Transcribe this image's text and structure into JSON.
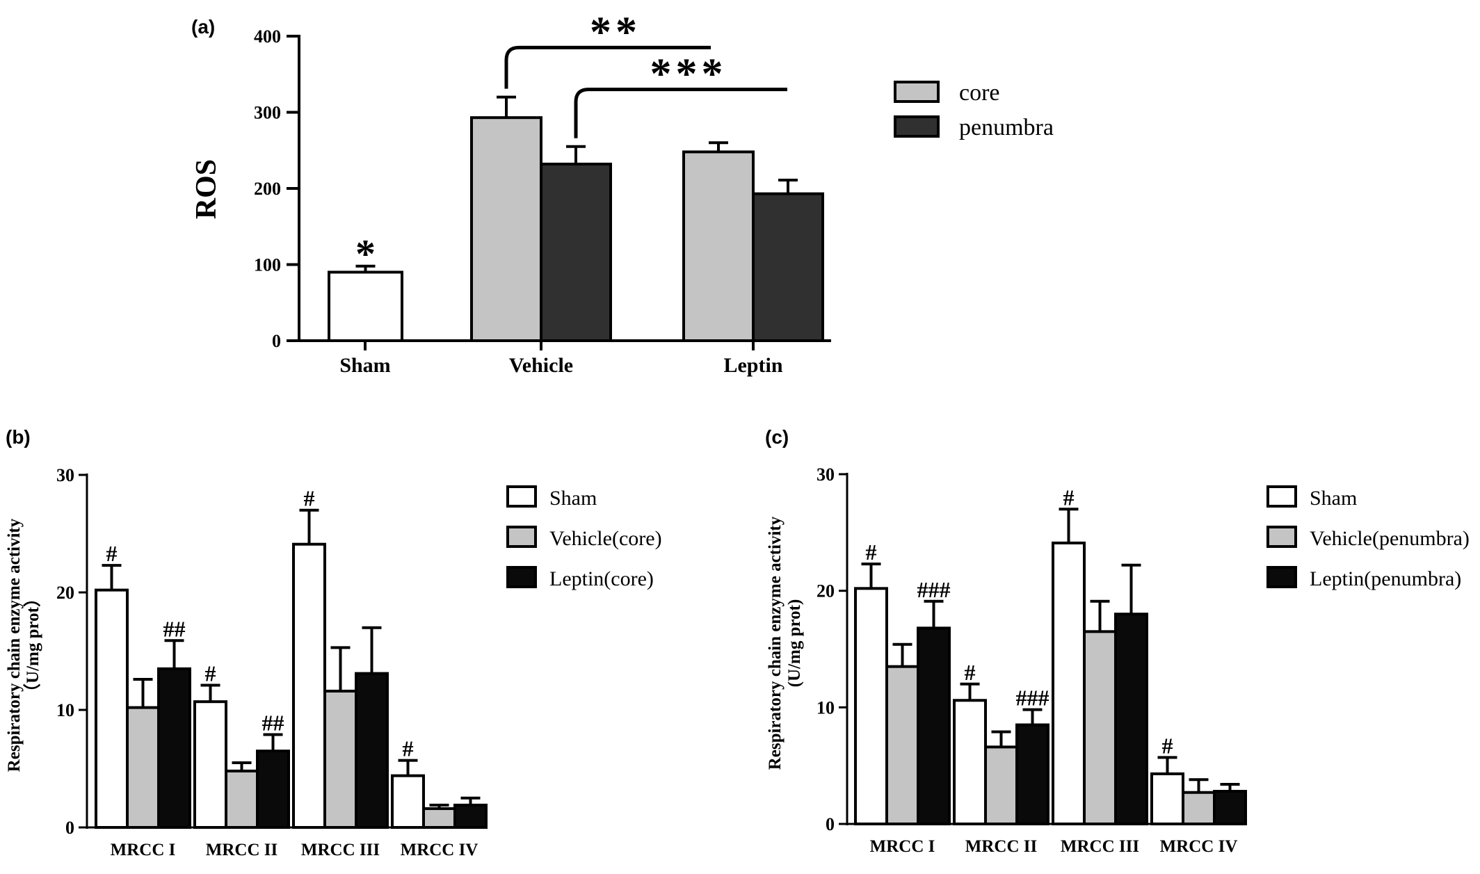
{
  "chart_data": [
    {
      "type": "bar",
      "panel_label": "(a)",
      "categories": [
        "Sham",
        "Vehicle",
        "Leptin"
      ],
      "ylabel": "ROS",
      "xlabel": "",
      "ylim": [
        0,
        400
      ],
      "yticks": [
        0,
        100,
        200,
        300,
        400
      ],
      "legend_position": "right",
      "legend": [
        "core",
        "penumbra"
      ],
      "colors": {
        "white": "#ffffff",
        "core": "#c4c4c4",
        "penumbra": "#303030"
      },
      "bars": [
        {
          "category": "Sham",
          "series": "",
          "value": 90,
          "error": 8,
          "color": "white",
          "annotation": "*"
        },
        {
          "category": "Vehicle",
          "series": "core",
          "value": 293,
          "error": 27,
          "color": "core",
          "annotation": ""
        },
        {
          "category": "Vehicle",
          "series": "penumbra",
          "value": 232,
          "error": 23,
          "color": "penumbra",
          "annotation": ""
        },
        {
          "category": "Leptin",
          "series": "core",
          "value": 248,
          "error": 12,
          "color": "core",
          "annotation": ""
        },
        {
          "category": "Leptin",
          "series": "penumbra",
          "value": 193,
          "error": 18,
          "color": "penumbra",
          "annotation": ""
        }
      ],
      "brackets": [
        {
          "label": "**",
          "from": {
            "category": "Vehicle",
            "series": "core"
          },
          "y": 385
        },
        {
          "label": "***",
          "from": {
            "category": "Vehicle",
            "series": "penumbra"
          },
          "y": 330
        }
      ]
    },
    {
      "type": "bar",
      "panel_label": "(b)",
      "categories": [
        "MRCC I",
        "MRCC II",
        "MRCC III",
        "MRCC IV"
      ],
      "ylabel": "Respiratory chain enzyme activity",
      "ylabel2": "（U/mg prot）",
      "xlabel": "",
      "ylim": [
        0,
        30
      ],
      "yticks": [
        0,
        10,
        20,
        30
      ],
      "legend_position": "right",
      "colors": {
        "Sham": "#ffffff",
        "Vehicle(core)": "#c4c4c4",
        "Leptin(core)": "#0a0a0a"
      },
      "series": [
        {
          "name": "Sham",
          "values": [
            20.2,
            10.7,
            24.1,
            4.4
          ],
          "errors": [
            2.1,
            1.4,
            2.9,
            1.3
          ],
          "annotations": [
            "#",
            "#",
            "#",
            "#"
          ]
        },
        {
          "name": "Vehicle(core)",
          "values": [
            10.2,
            4.8,
            11.6,
            1.6
          ],
          "errors": [
            2.4,
            0.7,
            3.7,
            0.3
          ],
          "annotations": [
            "",
            "",
            "",
            ""
          ]
        },
        {
          "name": "Leptin(core)",
          "values": [
            13.5,
            6.5,
            13.1,
            1.9
          ],
          "errors": [
            2.4,
            1.4,
            3.9,
            0.6
          ],
          "annotations": [
            "##",
            "##",
            "",
            ""
          ]
        }
      ]
    },
    {
      "type": "bar",
      "panel_label": "(c)",
      "categories": [
        "MRCC I",
        "MRCC II",
        "MRCC III",
        "MRCC IV"
      ],
      "ylabel": "Respiratory chain enzyme activity",
      "ylabel2": "(U/mg prot)",
      "xlabel": "",
      "ylim": [
        0,
        30
      ],
      "yticks": [
        0,
        10,
        20,
        30
      ],
      "legend_position": "right",
      "colors": {
        "Sham": "#ffffff",
        "Vehicle(penumbra)": "#c4c4c4",
        "Leptin(penumbra)": "#0a0a0a"
      },
      "series": [
        {
          "name": "Sham",
          "values": [
            20.2,
            10.6,
            24.1,
            4.3
          ],
          "errors": [
            2.1,
            1.4,
            2.9,
            1.4
          ],
          "annotations": [
            "#",
            "#",
            "#",
            "#"
          ]
        },
        {
          "name": "Vehicle(penumbra)",
          "values": [
            13.5,
            6.6,
            16.5,
            2.7
          ],
          "errors": [
            1.9,
            1.3,
            2.6,
            1.1
          ],
          "annotations": [
            "",
            "",
            "",
            ""
          ]
        },
        {
          "name": "Leptin(penumbra)",
          "values": [
            16.8,
            8.5,
            18.0,
            2.8
          ],
          "errors": [
            2.3,
            1.3,
            4.2,
            0.6
          ],
          "annotations": [
            "###",
            "###",
            "",
            ""
          ]
        }
      ]
    }
  ]
}
